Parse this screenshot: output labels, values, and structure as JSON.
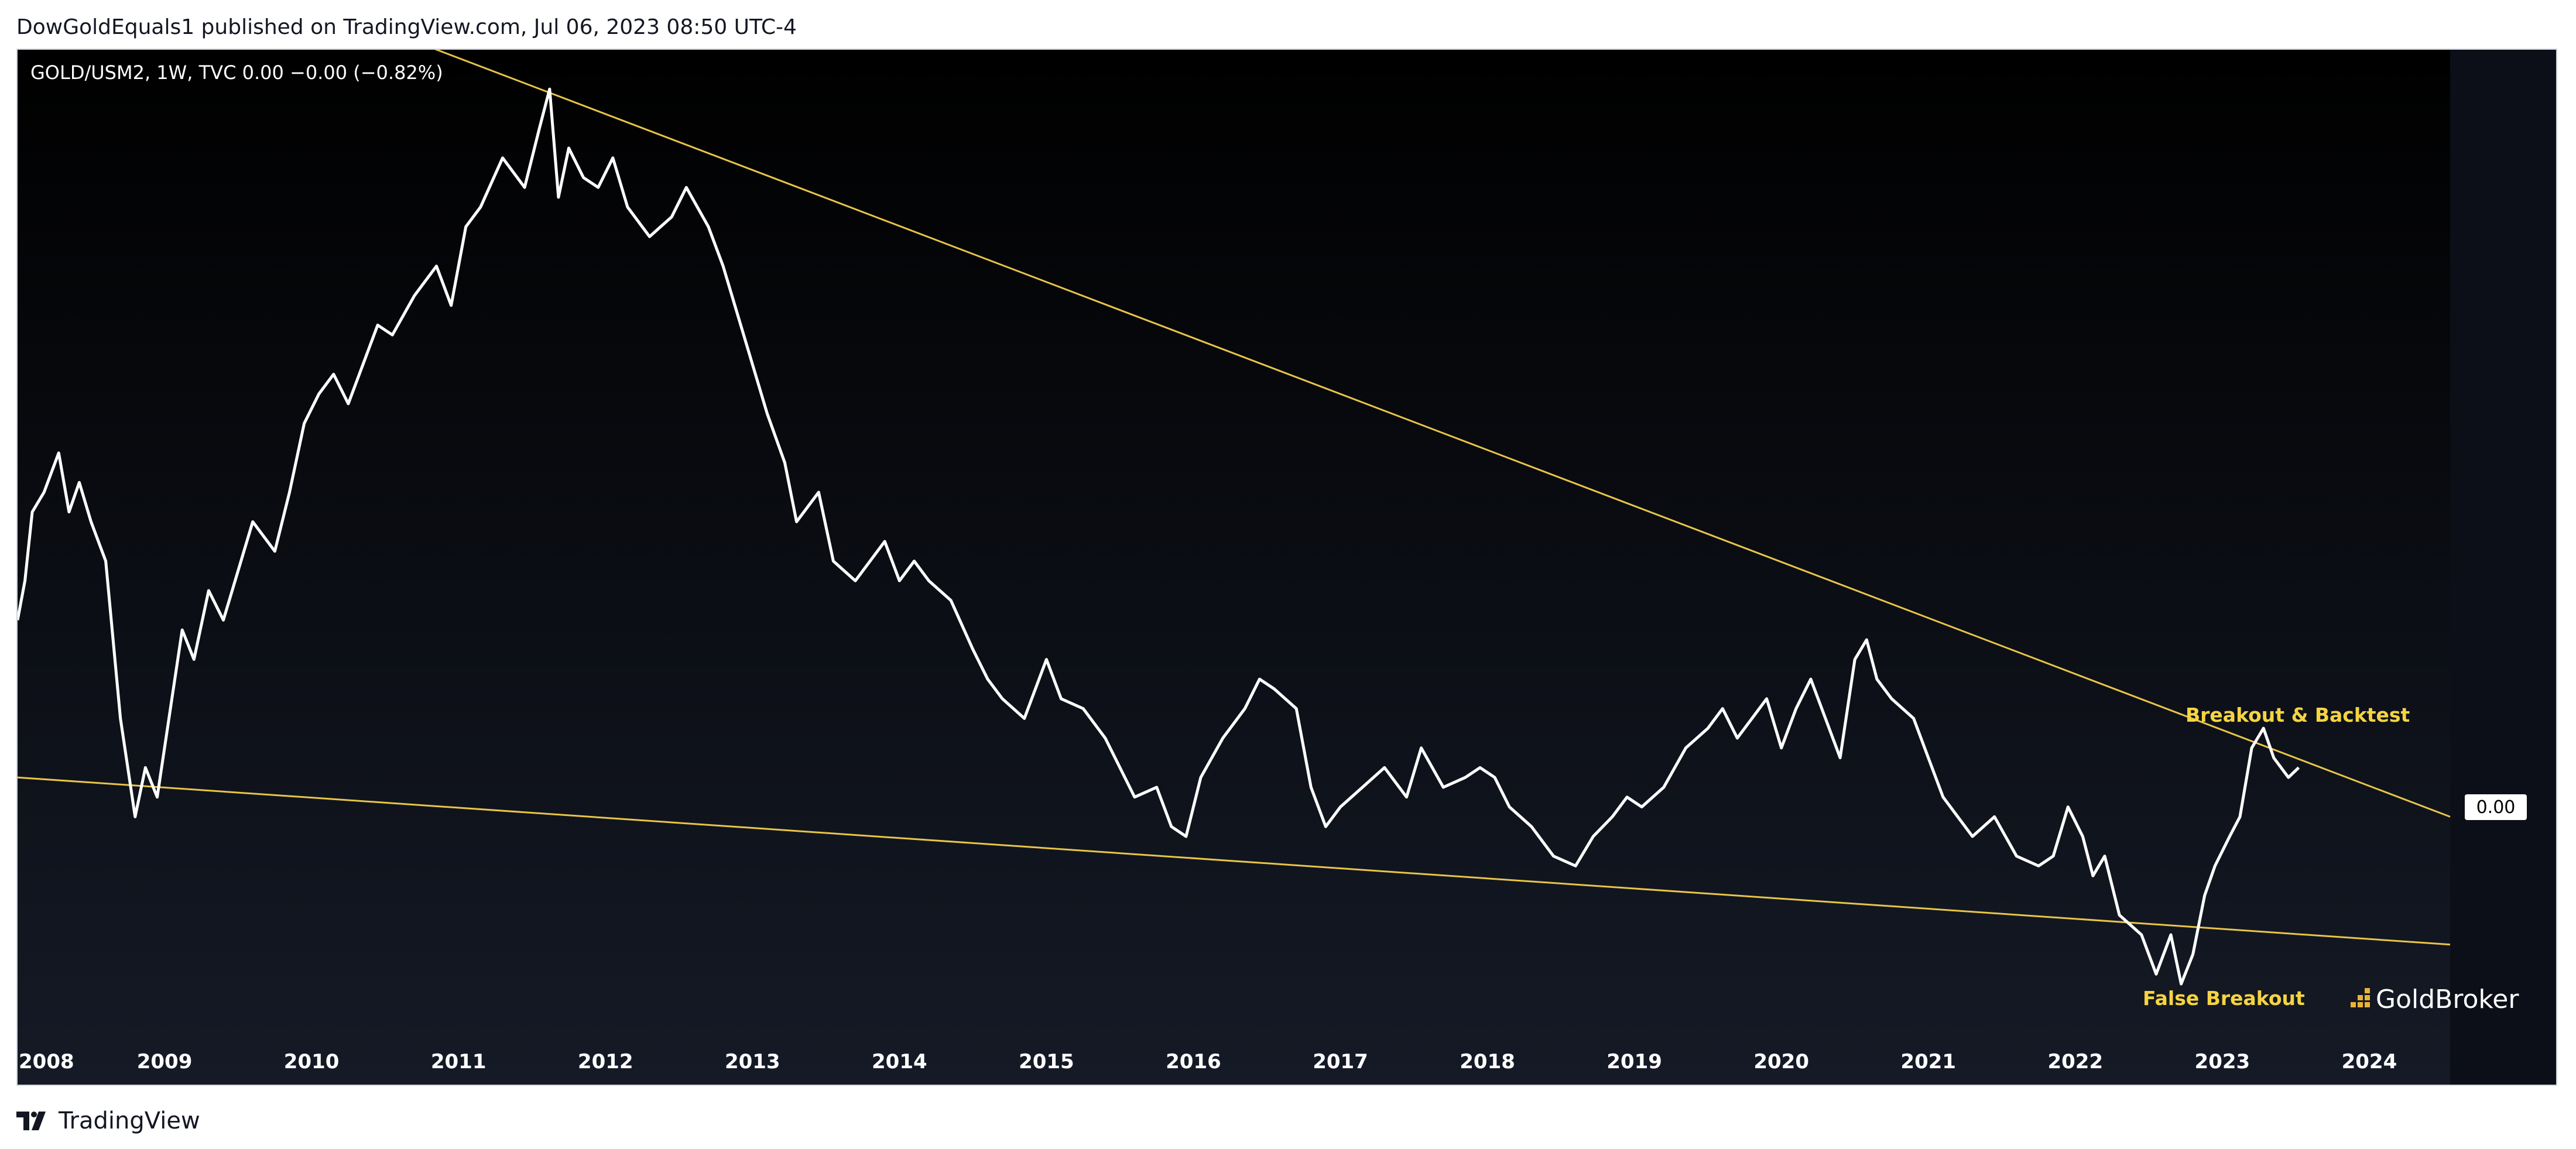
{
  "header": {
    "publish_line": "DowGoldEquals1 published on TradingView.com, Jul 06, 2023 08:50 UTC-4"
  },
  "footer": {
    "brand": "TradingView"
  },
  "colors": {
    "background_top": "#000000",
    "background_bottom": "#151a26",
    "price_line": "#ffffff",
    "trendline": "#e8c547",
    "annotation": "#f5d442",
    "axis_text": "#ffffff",
    "price_tag_bg": "#ffffff",
    "price_tag_text": "#000000"
  },
  "icons": {
    "tradingview_logo": "tradingview-logo-icon",
    "goldbroker_logo": "goldbroker-bars-icon"
  },
  "chart_data": {
    "type": "line",
    "legend": "GOLD/USM2, 1W, TVC  0.00  −0.00 (−0.82%)",
    "price_label": "0.00",
    "watermark": "GoldBroker",
    "annotations": [
      "Breakout & Backtest",
      "False Breakout"
    ],
    "x_ticks": [
      "2008",
      "2009",
      "2010",
      "2011",
      "2012",
      "2013",
      "2014",
      "2015",
      "2016",
      "2017",
      "2018",
      "2019",
      "2020",
      "2021",
      "2022",
      "2023",
      "2024"
    ],
    "xlim": [
      2008.0,
      2024.55
    ],
    "ylim": [
      0.0,
      1.0
    ],
    "grid": false,
    "series": [
      {
        "x": [
          2008.0,
          2008.05,
          2008.1,
          2008.18,
          2008.28,
          2008.35,
          2008.42,
          2008.5,
          2008.6,
          2008.7,
          2008.8,
          2008.87,
          2008.95,
          2009.05,
          2009.12,
          2009.2,
          2009.3,
          2009.4,
          2009.5,
          2009.6,
          2009.75,
          2009.85,
          2009.95,
          2010.05,
          2010.15,
          2010.25,
          2010.35,
          2010.45,
          2010.55,
          2010.7,
          2010.85,
          2010.95,
          2011.05,
          2011.15,
          2011.3,
          2011.45,
          2011.55,
          2011.62,
          2011.68,
          2011.75,
          2011.85,
          2011.95,
          2012.05,
          2012.15,
          2012.3,
          2012.45,
          2012.55,
          2012.7,
          2012.8,
          2012.9,
          2013.0,
          2013.1,
          2013.22,
          2013.3,
          2013.45,
          2013.55,
          2013.7,
          2013.8,
          2013.9,
          2014.0,
          2014.1,
          2014.2,
          2014.35,
          2014.5,
          2014.6,
          2014.7,
          2014.85,
          2014.95,
          2015.0,
          2015.1,
          2015.25,
          2015.4,
          2015.5,
          2015.6,
          2015.75,
          2015.85,
          2015.95,
          2016.05,
          2016.2,
          2016.35,
          2016.45,
          2016.55,
          2016.7,
          2016.8,
          2016.9,
          2017.0,
          2017.15,
          2017.3,
          2017.45,
          2017.55,
          2017.7,
          2017.85,
          2017.95,
          2018.05,
          2018.15,
          2018.3,
          2018.45,
          2018.6,
          2018.72,
          2018.85,
          2018.95,
          2019.05,
          2019.2,
          2019.35,
          2019.5,
          2019.6,
          2019.7,
          2019.8,
          2019.9,
          2020.0,
          2020.1,
          2020.2,
          2020.3,
          2020.4,
          2020.5,
          2020.58,
          2020.65,
          2020.75,
          2020.9,
          2021.0,
          2021.1,
          2021.2,
          2021.3,
          2021.45,
          2021.6,
          2021.75,
          2021.85,
          2021.95,
          2022.05,
          2022.12,
          2022.2,
          2022.3,
          2022.45,
          2022.55,
          2022.65,
          2022.72,
          2022.8,
          2022.88,
          2022.95,
          2023.05,
          2023.12,
          2023.2,
          2023.28,
          2023.35,
          2023.45,
          2023.52
        ],
        "values": [
          0.42,
          0.46,
          0.53,
          0.55,
          0.59,
          0.53,
          0.56,
          0.52,
          0.48,
          0.32,
          0.22,
          0.27,
          0.24,
          0.34,
          0.41,
          0.38,
          0.45,
          0.42,
          0.47,
          0.52,
          0.49,
          0.55,
          0.62,
          0.65,
          0.67,
          0.64,
          0.68,
          0.72,
          0.71,
          0.75,
          0.78,
          0.74,
          0.82,
          0.84,
          0.89,
          0.86,
          0.92,
          0.96,
          0.85,
          0.9,
          0.87,
          0.86,
          0.89,
          0.84,
          0.81,
          0.83,
          0.86,
          0.82,
          0.78,
          0.73,
          0.68,
          0.63,
          0.58,
          0.52,
          0.55,
          0.48,
          0.46,
          0.48,
          0.5,
          0.46,
          0.48,
          0.46,
          0.44,
          0.39,
          0.36,
          0.34,
          0.32,
          0.36,
          0.38,
          0.34,
          0.33,
          0.3,
          0.27,
          0.24,
          0.25,
          0.21,
          0.2,
          0.26,
          0.3,
          0.33,
          0.36,
          0.35,
          0.33,
          0.25,
          0.21,
          0.23,
          0.25,
          0.27,
          0.24,
          0.29,
          0.25,
          0.26,
          0.27,
          0.26,
          0.23,
          0.21,
          0.18,
          0.17,
          0.2,
          0.22,
          0.24,
          0.23,
          0.25,
          0.29,
          0.31,
          0.33,
          0.3,
          0.32,
          0.34,
          0.29,
          0.33,
          0.36,
          0.32,
          0.28,
          0.38,
          0.4,
          0.36,
          0.34,
          0.32,
          0.28,
          0.24,
          0.22,
          0.2,
          0.22,
          0.18,
          0.17,
          0.18,
          0.23,
          0.2,
          0.16,
          0.18,
          0.12,
          0.1,
          0.06,
          0.1,
          0.05,
          0.08,
          0.14,
          0.17,
          0.2,
          0.22,
          0.29,
          0.31,
          0.28,
          0.26,
          0.27
        ]
      }
    ],
    "trendlines": [
      {
        "name": "upper",
        "x": [
          2010.15,
          2024.55
        ],
        "y": [
          1.04,
          0.22
        ]
      },
      {
        "name": "lower",
        "x": [
          2008.0,
          2024.55
        ],
        "y": [
          0.26,
          0.09
        ]
      }
    ]
  }
}
